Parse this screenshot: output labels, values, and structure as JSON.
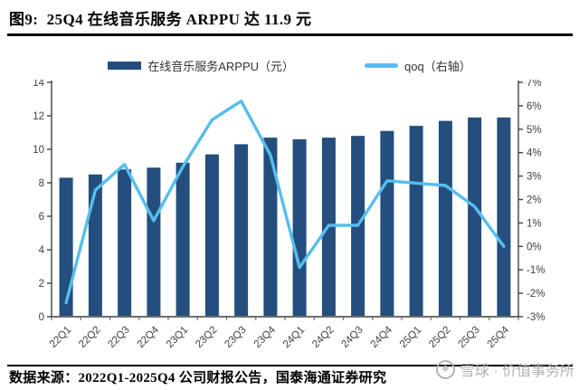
{
  "figure": {
    "title": "图9:  25Q4 在线音乐服务 ARPPU 达 11.9 元",
    "source_note": "数据来源：2022Q1-2025Q4 公司财报公告，国泰海通证券研究",
    "watermark": {
      "logo_icon": "snowball-icon",
      "logo_glyph": "❅",
      "text": "雪球 · 价值事务所"
    }
  },
  "legend": {
    "bar_label": "在线音乐服务ARPPU（元）",
    "line_label": "qoq（右轴）"
  },
  "colors": {
    "bar": "#234E7D",
    "line": "#55BEEE",
    "axis": "#404040",
    "x_axis": "#6e6e6e",
    "rule": "#000000",
    "watermark": "#b2b2b2"
  },
  "chart_data": {
    "type": "bar",
    "combo": "bar + line, dual axis",
    "title": "25Q4 在线音乐服务 ARPPU 达 11.9 元",
    "grid": false,
    "legend_position": "top",
    "categories": [
      "22Q1",
      "22Q2",
      "22Q3",
      "22Q4",
      "23Q1",
      "23Q2",
      "23Q3",
      "23Q4",
      "24Q1",
      "24Q2",
      "24Q3",
      "24Q4",
      "25Q1",
      "25Q2",
      "25Q3",
      "25Q4"
    ],
    "series": [
      {
        "name": "在线音乐服务ARPPU（元）",
        "type": "bar",
        "axis": "left",
        "color": "#234E7D",
        "unit": "元",
        "values": [
          8.3,
          8.5,
          8.8,
          8.9,
          9.2,
          9.7,
          10.3,
          10.7,
          10.6,
          10.7,
          10.8,
          11.1,
          11.4,
          11.7,
          11.9,
          11.9
        ]
      },
      {
        "name": "qoq（右轴）",
        "type": "line",
        "axis": "right",
        "color": "#55BEEE",
        "unit": "%",
        "values": [
          -2.4,
          2.4,
          3.5,
          1.1,
          3.4,
          5.4,
          6.2,
          3.9,
          -0.9,
          0.9,
          0.9,
          2.8,
          2.7,
          2.6,
          1.7,
          0.0
        ]
      }
    ],
    "left_axis": {
      "min": 0,
      "max": 14,
      "step": 2,
      "tick_values": [
        0,
        2,
        4,
        6,
        8,
        10,
        12,
        14
      ],
      "tick_labels": [
        "0",
        "2",
        "4",
        "6",
        "8",
        "10",
        "12",
        "14"
      ]
    },
    "right_axis": {
      "min": -3,
      "max": 7,
      "step": 1,
      "tick_values": [
        -3,
        -2,
        -1,
        0,
        1,
        2,
        3,
        4,
        5,
        6,
        7
      ],
      "tick_labels": [
        "-3%",
        "-2%",
        "-1%",
        "0%",
        "1%",
        "2%",
        "3%",
        "4%",
        "5%",
        "6%",
        "7%"
      ]
    }
  }
}
